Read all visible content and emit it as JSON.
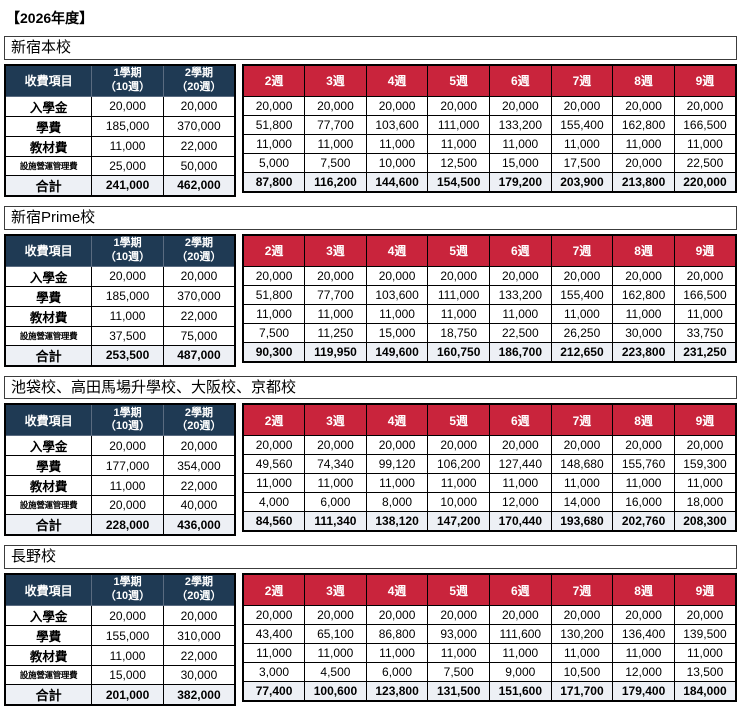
{
  "page_title": "【2026年度】",
  "colors": {
    "header_navy": "#1F3A54",
    "header_red": "#C9243C",
    "total_row_bg": "#EDF0F5",
    "table_border": "#000000"
  },
  "table_header": {
    "item_label": "收費項目",
    "terms": [
      {
        "line1": "1學期",
        "line2": "（10週）"
      },
      {
        "line1": "2學期",
        "line2": "（20週）"
      }
    ],
    "weeks": [
      "2週",
      "3週",
      "4週",
      "5週",
      "6週",
      "7週",
      "8週",
      "9週"
    ]
  },
  "sections": [
    {
      "title": "新宿本校",
      "rows": [
        {
          "label": "入學金",
          "small": false,
          "total": false,
          "values": [
            "20,000",
            "20,000",
            "20,000",
            "20,000",
            "20,000",
            "20,000",
            "20,000",
            "20,000",
            "20,000",
            "20,000"
          ]
        },
        {
          "label": "學費",
          "small": false,
          "total": false,
          "values": [
            "185,000",
            "370,000",
            "51,800",
            "77,700",
            "103,600",
            "111,000",
            "133,200",
            "155,400",
            "162,800",
            "166,500"
          ]
        },
        {
          "label": "教材費",
          "small": false,
          "total": false,
          "values": [
            "11,000",
            "22,000",
            "11,000",
            "11,000",
            "11,000",
            "11,000",
            "11,000",
            "11,000",
            "11,000",
            "11,000"
          ]
        },
        {
          "label": "設施營運管理費",
          "small": true,
          "total": false,
          "values": [
            "25,000",
            "50,000",
            "5,000",
            "7,500",
            "10,000",
            "12,500",
            "15,000",
            "17,500",
            "20,000",
            "22,500"
          ]
        },
        {
          "label": "合計",
          "small": false,
          "total": true,
          "values": [
            "241,000",
            "462,000",
            "87,800",
            "116,200",
            "144,600",
            "154,500",
            "179,200",
            "203,900",
            "213,800",
            "220,000"
          ]
        }
      ]
    },
    {
      "title": "新宿Prime校",
      "rows": [
        {
          "label": "入學金",
          "small": false,
          "total": false,
          "values": [
            "20,000",
            "20,000",
            "20,000",
            "20,000",
            "20,000",
            "20,000",
            "20,000",
            "20,000",
            "20,000",
            "20,000"
          ]
        },
        {
          "label": "學費",
          "small": false,
          "total": false,
          "values": [
            "185,000",
            "370,000",
            "51,800",
            "77,700",
            "103,600",
            "111,000",
            "133,200",
            "155,400",
            "162,800",
            "166,500"
          ]
        },
        {
          "label": "教材費",
          "small": false,
          "total": false,
          "values": [
            "11,000",
            "22,000",
            "11,000",
            "11,000",
            "11,000",
            "11,000",
            "11,000",
            "11,000",
            "11,000",
            "11,000"
          ]
        },
        {
          "label": "設施營運管理費",
          "small": true,
          "total": false,
          "values": [
            "37,500",
            "75,000",
            "7,500",
            "11,250",
            "15,000",
            "18,750",
            "22,500",
            "26,250",
            "30,000",
            "33,750"
          ]
        },
        {
          "label": "合計",
          "small": false,
          "total": true,
          "values": [
            "253,500",
            "487,000",
            "90,300",
            "119,950",
            "149,600",
            "160,750",
            "186,700",
            "212,650",
            "223,800",
            "231,250"
          ]
        }
      ]
    },
    {
      "title": "池袋校、高田馬場升學校、大阪校、京都校",
      "rows": [
        {
          "label": "入學金",
          "small": false,
          "total": false,
          "values": [
            "20,000",
            "20,000",
            "20,000",
            "20,000",
            "20,000",
            "20,000",
            "20,000",
            "20,000",
            "20,000",
            "20,000"
          ]
        },
        {
          "label": "學費",
          "small": false,
          "total": false,
          "values": [
            "177,000",
            "354,000",
            "49,560",
            "74,340",
            "99,120",
            "106,200",
            "127,440",
            "148,680",
            "155,760",
            "159,300"
          ]
        },
        {
          "label": "教材費",
          "small": false,
          "total": false,
          "values": [
            "11,000",
            "22,000",
            "11,000",
            "11,000",
            "11,000",
            "11,000",
            "11,000",
            "11,000",
            "11,000",
            "11,000"
          ]
        },
        {
          "label": "設施營運管理費",
          "small": true,
          "total": false,
          "values": [
            "20,000",
            "40,000",
            "4,000",
            "6,000",
            "8,000",
            "10,000",
            "12,000",
            "14,000",
            "16,000",
            "18,000"
          ]
        },
        {
          "label": "合計",
          "small": false,
          "total": true,
          "values": [
            "228,000",
            "436,000",
            "84,560",
            "111,340",
            "138,120",
            "147,200",
            "170,440",
            "193,680",
            "202,760",
            "208,300"
          ]
        }
      ]
    },
    {
      "title": "長野校",
      "rows": [
        {
          "label": "入學金",
          "small": false,
          "total": false,
          "values": [
            "20,000",
            "20,000",
            "20,000",
            "20,000",
            "20,000",
            "20,000",
            "20,000",
            "20,000",
            "20,000",
            "20,000"
          ]
        },
        {
          "label": "學費",
          "small": false,
          "total": false,
          "values": [
            "155,000",
            "310,000",
            "43,400",
            "65,100",
            "86,800",
            "93,000",
            "111,600",
            "130,200",
            "136,400",
            "139,500"
          ]
        },
        {
          "label": "教材費",
          "small": false,
          "total": false,
          "values": [
            "11,000",
            "22,000",
            "11,000",
            "11,000",
            "11,000",
            "11,000",
            "11,000",
            "11,000",
            "11,000",
            "11,000"
          ]
        },
        {
          "label": "設施營運管理費",
          "small": true,
          "total": false,
          "values": [
            "15,000",
            "30,000",
            "3,000",
            "4,500",
            "6,000",
            "7,500",
            "9,000",
            "10,500",
            "12,000",
            "13,500"
          ]
        },
        {
          "label": "合計",
          "small": false,
          "total": true,
          "values": [
            "201,000",
            "382,000",
            "77,400",
            "100,600",
            "123,800",
            "131,500",
            "151,600",
            "171,700",
            "179,400",
            "184,000"
          ]
        }
      ]
    }
  ]
}
